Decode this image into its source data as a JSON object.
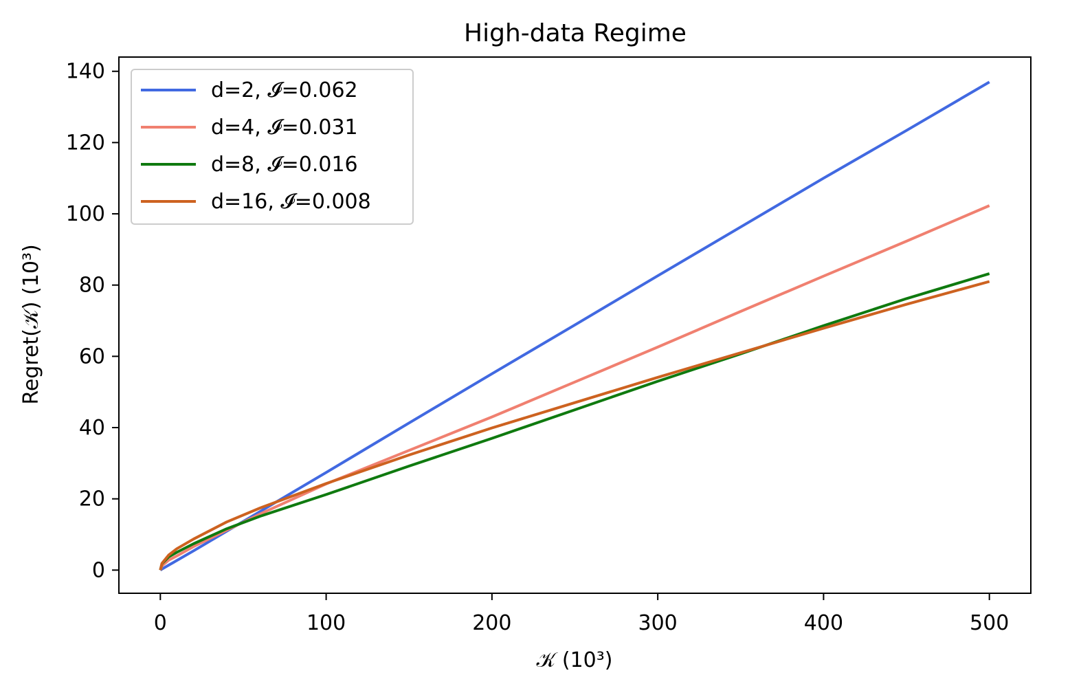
{
  "chart_data": {
    "type": "line",
    "title": "High-data Regime",
    "xlabel": "𝒦 (10³)",
    "ylabel": "Regret(𝒦) (10³)",
    "xlim": [
      -25,
      525
    ],
    "ylim": [
      -6.5,
      144
    ],
    "xticks": [
      0,
      100,
      200,
      300,
      400,
      500
    ],
    "yticks": [
      0,
      20,
      40,
      60,
      80,
      100,
      120,
      140
    ],
    "grid": false,
    "legend_position": "top-left",
    "series": [
      {
        "name": "d=2, 𝓘=0.062",
        "color": "#4169e1",
        "x": [
          0,
          1,
          5,
          10,
          20,
          40,
          60,
          100,
          150,
          200,
          250,
          300,
          350,
          400,
          450,
          500
        ],
        "y": [
          0,
          0.3,
          1.4,
          2.7,
          5.4,
          10.9,
          16.4,
          27.4,
          41.3,
          55.1,
          68.8,
          82.6,
          96.3,
          110.0,
          123.4,
          137.0
        ]
      },
      {
        "name": "d=4, 𝓘=0.031",
        "color": "#f08070",
        "x": [
          0,
          1,
          5,
          10,
          20,
          40,
          60,
          100,
          150,
          200,
          250,
          300,
          350,
          400,
          450,
          500
        ],
        "y": [
          0,
          1.2,
          2.8,
          4.0,
          6.6,
          11.2,
          15.7,
          24.2,
          33.6,
          43.0,
          52.8,
          62.6,
          72.6,
          82.5,
          92.3,
          102.3
        ]
      },
      {
        "name": "d=8, 𝓘=0.016",
        "color": "#0f7a0f",
        "x": [
          0,
          1,
          5,
          10,
          20,
          40,
          60,
          100,
          150,
          200,
          250,
          300,
          350,
          400,
          450,
          500
        ],
        "y": [
          0,
          1.8,
          3.7,
          5.0,
          7.4,
          11.6,
          15.1,
          21.2,
          29.2,
          37.0,
          45.0,
          53.0,
          60.7,
          68.6,
          76.2,
          83.2
        ]
      },
      {
        "name": "d=16, 𝓘=0.008",
        "color": "#cd6220",
        "x": [
          0,
          1,
          5,
          10,
          20,
          40,
          60,
          100,
          150,
          200,
          250,
          300,
          350,
          400,
          450,
          500
        ],
        "y": [
          0,
          1.9,
          4.2,
          6.0,
          8.7,
          13.5,
          17.4,
          24.3,
          32.3,
          39.9,
          47.0,
          54.1,
          61.0,
          67.9,
          74.6,
          81.0
        ]
      }
    ]
  }
}
